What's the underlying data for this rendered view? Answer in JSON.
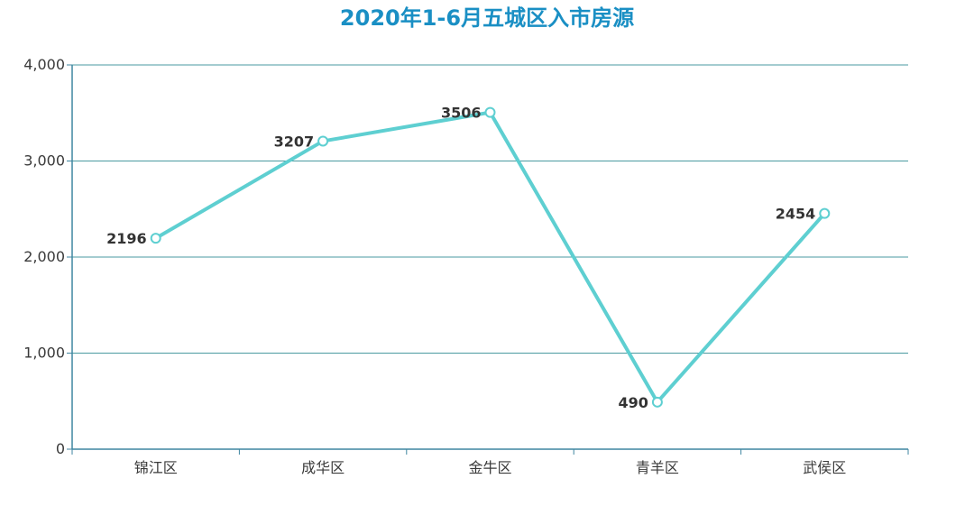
{
  "chart_data": {
    "type": "line",
    "title": "2020年1-6月五城区入市房源",
    "xlabel": "",
    "ylabel": "",
    "categories": [
      "锦江区",
      "成华区",
      "金牛区",
      "青羊区",
      "武侯区"
    ],
    "series": [
      {
        "values": [
          2196,
          3207,
          3506,
          490,
          2454
        ]
      }
    ],
    "data_labels": [
      "2196",
      "3207",
      "3506",
      "490",
      "2454"
    ],
    "ylim": [
      0,
      4000
    ],
    "y_ticks": [
      0,
      1000,
      2000,
      3000,
      4000
    ],
    "y_tick_labels": [
      "0",
      "1,000",
      "2,000",
      "3,000",
      "4,000"
    ],
    "grid": true,
    "legend": "none",
    "colors": {
      "title": "#1a8fc4",
      "line": "#5ecfd1",
      "grid": "#4a9aa0",
      "axis": "#3f86a0",
      "point_fill": "#ffffff"
    }
  }
}
